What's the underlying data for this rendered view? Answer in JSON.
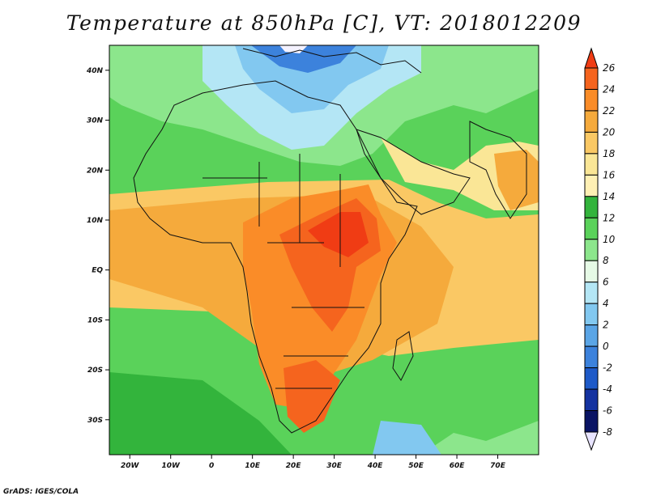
{
  "title": "Temperature at 850hPa [C], VT: 2018012209",
  "credit": "GrADS: IGES/COLA",
  "map": {
    "lon_range": [
      -25,
      80
    ],
    "lat_range": [
      -37,
      45
    ],
    "lat_ticks": [
      {
        "lat": 40,
        "label": "40N"
      },
      {
        "lat": 30,
        "label": "30N"
      },
      {
        "lat": 20,
        "label": "20N"
      },
      {
        "lat": 10,
        "label": "10N"
      },
      {
        "lat": 0,
        "label": "EQ"
      },
      {
        "lat": -10,
        "label": "10S"
      },
      {
        "lat": -20,
        "label": "20S"
      },
      {
        "lat": -30,
        "label": "30S"
      }
    ],
    "lon_ticks": [
      {
        "lon": -20,
        "label": "20W"
      },
      {
        "lon": -10,
        "label": "10W"
      },
      {
        "lon": 0,
        "label": "0"
      },
      {
        "lon": 10,
        "label": "10E"
      },
      {
        "lon": 20,
        "label": "20E"
      },
      {
        "lon": 30,
        "label": "30E"
      },
      {
        "lon": 40,
        "label": "40E"
      },
      {
        "lon": 50,
        "label": "50E"
      },
      {
        "lon": 60,
        "label": "60E"
      },
      {
        "lon": 70,
        "label": "70E"
      }
    ]
  },
  "colorbar": {
    "levels": [
      "26",
      "24",
      "22",
      "20",
      "18",
      "16",
      "14",
      "12",
      "10",
      "8",
      "6",
      "4",
      "2",
      "0",
      "-2",
      "-4",
      "-6",
      "-8"
    ],
    "colors": [
      "#f03c14",
      "#f5641e",
      "#fa8c28",
      "#f5aa3c",
      "#fac864",
      "#fae696",
      "#fff0b4",
      "#33b43c",
      "#5ad25a",
      "#8ce68c",
      "#e6fae6",
      "#b4e6f5",
      "#82c8f0",
      "#5aa5e6",
      "#3c82dc",
      "#1e5ac8",
      "#1432a0",
      "#0a1464",
      "#e8e4ff"
    ]
  }
}
